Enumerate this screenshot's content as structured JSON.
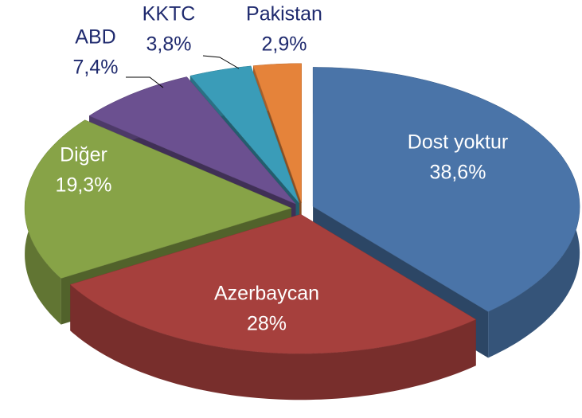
{
  "chart_data": {
    "type": "pie3d",
    "categories": [
      "Dost yoktur",
      "Azerbaycan",
      "Diğer",
      "ABD",
      "KKTC",
      "Pakistan"
    ],
    "values": [
      38.6,
      28,
      19.3,
      7.4,
      3.8,
      2.9
    ],
    "value_labels": [
      "38,6%",
      "28%",
      "19,3%",
      "7,4%",
      "3,8%",
      "2,9%"
    ],
    "colors": [
      "#4a74a8",
      "#a6403d",
      "#87a347",
      "#6b5090",
      "#3a9cb8",
      "#e5833a"
    ]
  }
}
